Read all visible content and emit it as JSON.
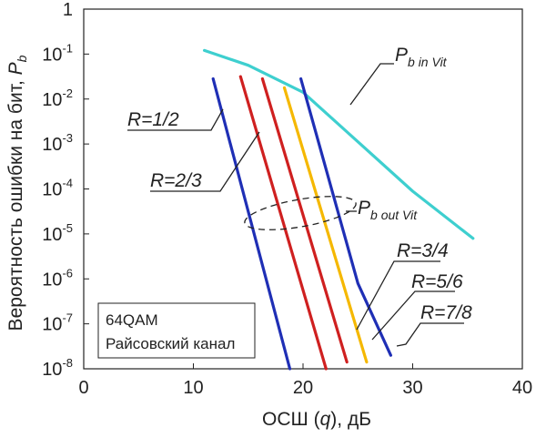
{
  "chart_data": {
    "type": "line",
    "ylabel_text": "Вероятность ошибки на бит, ",
    "ylabel_var": "P",
    "ylabel_sub": "b",
    "xlabel_pre": "ОСШ (",
    "xlabel_var": "q",
    "xlabel_post": "), дБ",
    "xlim": [
      0,
      40
    ],
    "ylim_log10": [
      -8,
      0
    ],
    "y_scale": "log",
    "x_ticks": [
      {
        "value": 0,
        "label": "0"
      },
      {
        "value": 10,
        "label": "10"
      },
      {
        "value": 20,
        "label": "20"
      },
      {
        "value": 30,
        "label": "30"
      },
      {
        "value": 40,
        "label": "40"
      }
    ],
    "y_ticks": [
      {
        "exp": 0,
        "base": "1",
        "sup": ""
      },
      {
        "exp": -1,
        "base": "10",
        "sup": "-1"
      },
      {
        "exp": -2,
        "base": "10",
        "sup": "-2"
      },
      {
        "exp": -3,
        "base": "10",
        "sup": "-3"
      },
      {
        "exp": -4,
        "base": "10",
        "sup": "-4"
      },
      {
        "exp": -5,
        "base": "10",
        "sup": "-5"
      },
      {
        "exp": -6,
        "base": "10",
        "sup": "-6"
      },
      {
        "exp": -7,
        "base": "10",
        "sup": "-7"
      },
      {
        "exp": -8,
        "base": "10",
        "sup": "-8"
      }
    ],
    "series": [
      {
        "name": "Pb in Vit",
        "color": "#3ecfcf",
        "x": [
          11,
          15,
          20,
          25,
          30,
          35.5
        ],
        "log10y": [
          -0.92,
          -1.25,
          -1.85,
          -2.95,
          -4.05,
          -5.1
        ]
      },
      {
        "name": "R=1/2",
        "color": "#1f2fb5",
        "x": [
          11.8,
          18.8
        ],
        "log10y": [
          -1.55,
          -8.0
        ]
      },
      {
        "name": "R=2/3",
        "color": "#cf2020",
        "x": [
          14.3,
          22.1
        ],
        "log10y": [
          -1.5,
          -8.0
        ]
      },
      {
        "name": "R=3/4",
        "color": "#cf2020",
        "x": [
          16.3,
          24.0
        ],
        "log10y": [
          -1.55,
          -7.85
        ]
      },
      {
        "name": "R=5/6",
        "color": "#f5b800",
        "x": [
          18.3,
          25.8
        ],
        "log10y": [
          -1.75,
          -7.85
        ]
      },
      {
        "name": "R=7/8",
        "color": "#1f2fb5",
        "x": [
          19.8,
          25.0,
          28.0
        ],
        "log10y": [
          -1.55,
          -6.1,
          -7.7
        ]
      }
    ],
    "annotations": {
      "r12": "R=1/2",
      "r23": "R=2/3",
      "r34": "R=3/4",
      "r56": "R=5/6",
      "r78": "R=7/8",
      "pin_main": "P",
      "pin_sub": "b in Vit",
      "pout_main": "P",
      "pout_sub": "b out Vit"
    },
    "note_line1": "64QAM",
    "note_line2": "Райсовский канал",
    "grid": false,
    "legend": "none"
  }
}
